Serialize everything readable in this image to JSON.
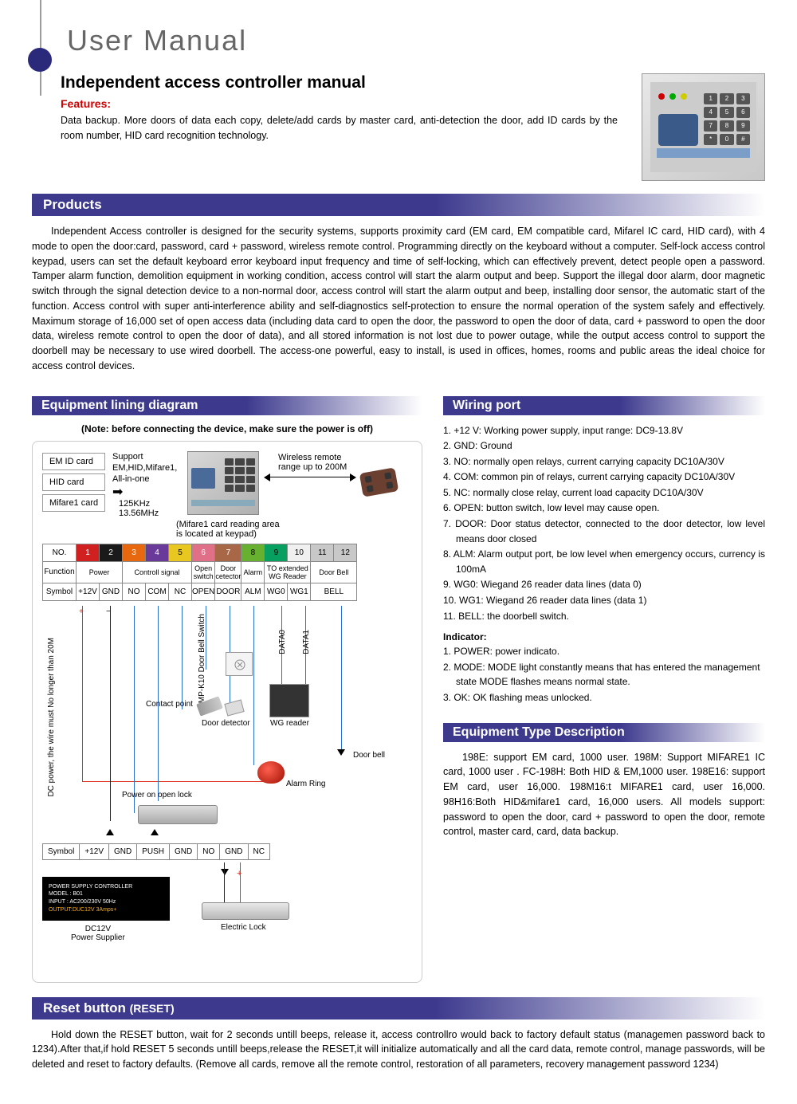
{
  "header": {
    "main_title": "User Manual",
    "sub_title": "Independent access controller manual",
    "features_label": "Features:",
    "features_text": "Data backup. More doors of data each copy, delete/add cards by master card, anti-detection the door, add ID cards by the room number, HID card recognition technology."
  },
  "keypad_keys": [
    "1",
    "2",
    "3",
    "4",
    "5",
    "6",
    "7",
    "8",
    "9",
    "*",
    "0",
    "#"
  ],
  "sections": {
    "products": "Products",
    "products_body": "Independent Access controller is designed for the security systems, supports proximity card (EM card, EM compatible card, Mifarel IC card, HID card), with 4 mode to open the door:card, password, card + password, wireless remote control. Programming directly on the keyboard without a computer. Self-lock access control keypad, users can set the default keyboard error keyboard input frequency and time of self-locking, which can effectively prevent, detect people open a password. Tamper alarm function, demolition equipment in working condition, access control will start the alarm output and beep. Support the illegal door alarm, door magnetic switch through the signal detection device to a non-normal door, access control will start the alarm output and beep, installing door sensor, the automatic start of the function. Access control with super anti-interference ability and self-diagnostics self-protection to ensure the normal operation of the system safely and effectively. Maximum storage of 16,000 set of open access data (including data card to open the door, the password to open the door of data, card + password to open the door data, wireless remote control to open the door of data), and all stored information is not lost due to power outage, while the output access control to support the doorbell may be necessary to use wired doorbell. The access-one powerful, easy to install, is used in offices, homes, rooms and public areas the ideal choice for access control devices.",
    "equipment_diagram": "Equipment lining diagram",
    "diagram_note": "(Note: before connecting the device, make sure the power is off)",
    "wiring_port": "Wiring port",
    "equipment_type": "Equipment Type Description",
    "reset_button": "Reset button (RESET)",
    "reset_body": "Hold down the RESET button, wait for 2 seconds untill beeps, release it, access controllro would  back to factory default status (managemen password back to 1234).After that,if  hold RESET 5 seconds untill beeps,release the RESET,it will  initialize automatically and all the card data, remote control, manage passwords, will be deleted and reset to factory defaults. (Remove all cards, remove all the remote control, restoration of all parameters, recovery management password 1234)"
  },
  "diagram": {
    "cards": [
      "EM ID card",
      "HID card",
      "Mifare1 card"
    ],
    "support_text": "Support\nEM,HID,Mifare1,\nAll-in-one",
    "freq": "125KHz\n13.56MHz",
    "mifare_note": "(Mifare1 card reading area\nis located at keypad)",
    "wireless": "Wireless remote\nrange up to 200M",
    "table": {
      "row_labels": [
        "NO.",
        "Function",
        "Symbol"
      ],
      "numbers": [
        "1",
        "2",
        "3",
        "4",
        "5",
        "6",
        "7",
        "8",
        "9",
        "10",
        "11",
        "12"
      ],
      "number_colors": [
        "#d02020",
        "#1a1a1a",
        "#e86810",
        "#6a3a9a",
        "#e8c820",
        "#e07088",
        "#a86848",
        "#68b030",
        "#08a060",
        "#f0f0f0",
        "#c8c8c8",
        "#c8c8c8"
      ],
      "functions": [
        {
          "span": 2,
          "text": "Power"
        },
        {
          "span": 3,
          "text": "Controll signal"
        },
        {
          "span": 1,
          "text": "Open switch"
        },
        {
          "span": 1,
          "text": "Door cetector"
        },
        {
          "span": 1,
          "text": "Alarm"
        },
        {
          "span": 2,
          "text": "TO extended WG Reader"
        },
        {
          "span": 2,
          "text": "Door Bell"
        }
      ],
      "symbols": [
        "+12V",
        "GND",
        "NO",
        "COM",
        "NC",
        "OPEN",
        "DOOR",
        "ALM",
        "WG0",
        "WG1",
        {
          "span": 2,
          "text": "BELL"
        }
      ]
    },
    "labels": {
      "dc_power": "DC power, the wire must No longer than 20M",
      "mpk10": "MP-K10\nDoor Bell Switch",
      "contact": "Contact point",
      "door_detector": "Door detector",
      "wg_reader": "WG reader",
      "data0": "DATA0",
      "data1": "DATA1",
      "door_bell": "Door bell",
      "power_lock": "Power on open lock",
      "alarm_ring": "Alarm Ring",
      "dc12v": "DC12V\nPower Supplier",
      "electric_lock": "Electric Lock"
    },
    "bottom_symbols": [
      "Symbol",
      "+12V",
      "GND",
      "PUSH",
      "GND",
      "NO",
      "GND",
      "NC"
    ],
    "power_box": {
      "l1": "POWER SUPPLY CONTROLLER",
      "l2": "MODEL : B01",
      "l3": "INPUT : AC200/230V   50Hz",
      "l4": "OUTPUT:DUC12V 3Amps+"
    }
  },
  "wiring_ports": [
    "1. +12 V: Working power supply, input range: DC9-13.8V",
    "2. GND: Ground",
    "3. NO: normally open relays, current carrying capacity DC10A/30V",
    "4. COM: common pin of  relays, current carrying capacity DC10A/30V",
    "5. NC: normally close relay, current load capacity DC10A/30V",
    "6. OPEN: button switch, low level may  cause open.",
    "7. DOOR: Door status detector,  connected to the door detector, low level means door closed",
    "8. ALM: Alarm output port, be low level when emergency occurs, currency is 100mA",
    "9. WG0: Wiegand 26 reader data lines (data 0)",
    "10. WG1: Wiegand 26 reader data lines (data 1)",
    "11. BELL: the doorbell switch."
  ],
  "indicators": {
    "header": "Indicator:",
    "items": [
      "1. POWER: power indicato.",
      "2. MODE: MODE light constantly means that has entered the management state MODE flashes means normal state.",
      "3. OK: OK flashing meas unlocked."
    ]
  },
  "equipment_type_body": "198E: support EM card, 1000 user.   198M: Support MIFARE1 IC card, 1000 user . FC-198H: Both HID & EM,1000 user.    198E16: support EM card, user 16,000.   198M16:t MIFARE1 card, user 16,000.   98H16:Both HID&mifare1 card, 16,000 users. All models support: password to open the door, card + password to open the door, remote control, master card, card, data backup."
}
